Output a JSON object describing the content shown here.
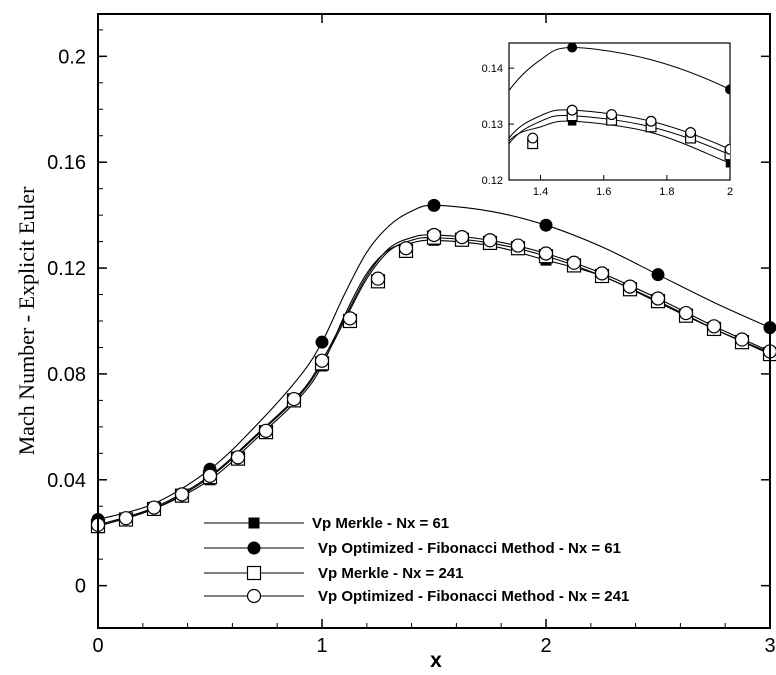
{
  "chart_data": {
    "type": "line",
    "xlabel": "x",
    "ylabel": "Mach Number - Explicit  Euler",
    "xlim": [
      0,
      3
    ],
    "ylim": [
      -0.016,
      0.216
    ],
    "xticks": [
      "0",
      "1",
      "2",
      "3"
    ],
    "yticks": [
      "0",
      "0.04",
      "0.08",
      "0.12",
      "0.16",
      "0.2"
    ],
    "legend_position": "bottom",
    "series": [
      {
        "name": "Vp Merkle - Nx = 61",
        "marker": "filled-square",
        "line": [
          [
            0,
            0.0225
          ],
          [
            0.25,
            0.029
          ],
          [
            0.5,
            0.04
          ],
          [
            0.7,
            0.055
          ],
          [
            0.9,
            0.071
          ],
          [
            1.0,
            0.083
          ],
          [
            1.1,
            0.102
          ],
          [
            1.2,
            0.118
          ],
          [
            1.3,
            0.127
          ],
          [
            1.4,
            0.1295
          ],
          [
            1.5,
            0.1305
          ],
          [
            1.75,
            0.1285
          ],
          [
            2.0,
            0.123
          ],
          [
            2.25,
            0.117
          ],
          [
            2.5,
            0.107
          ],
          [
            2.75,
            0.097
          ],
          [
            3.0,
            0.088
          ]
        ],
        "markers": [
          [
            0,
            0.0225
          ],
          [
            0.5,
            0.04
          ],
          [
            1.0,
            0.083
          ],
          [
            1.5,
            0.1305
          ],
          [
            2.0,
            0.123
          ],
          [
            2.5,
            0.107
          ],
          [
            3.0,
            0.088
          ]
        ]
      },
      {
        "name": "Vp Optimized - Fibonacci Method - Nx = 61",
        "marker": "filled-circle",
        "line": [
          [
            0,
            0.025
          ],
          [
            0.25,
            0.031
          ],
          [
            0.5,
            0.044
          ],
          [
            0.7,
            0.06
          ],
          [
            0.9,
            0.079
          ],
          [
            1.0,
            0.092
          ],
          [
            1.1,
            0.11
          ],
          [
            1.2,
            0.126
          ],
          [
            1.3,
            0.136
          ],
          [
            1.4,
            0.1415
          ],
          [
            1.5,
            0.1437
          ],
          [
            1.75,
            0.1415
          ],
          [
            2.0,
            0.1362
          ],
          [
            2.25,
            0.128
          ],
          [
            2.5,
            0.1175
          ],
          [
            2.75,
            0.107
          ],
          [
            3.0,
            0.0975
          ]
        ],
        "markers": [
          [
            0,
            0.025
          ],
          [
            0.5,
            0.044
          ],
          [
            1.0,
            0.092
          ],
          [
            1.5,
            0.1437
          ],
          [
            2.0,
            0.1362
          ],
          [
            2.5,
            0.1175
          ],
          [
            3.0,
            0.0975
          ]
        ]
      },
      {
        "name": "Vp Merkle - Nx = 241",
        "marker": "open-square",
        "line": [
          [
            0,
            0.0225
          ],
          [
            0.25,
            0.029
          ],
          [
            0.5,
            0.041
          ],
          [
            0.7,
            0.056
          ],
          [
            0.9,
            0.072
          ],
          [
            1.0,
            0.084
          ],
          [
            1.1,
            0.1
          ],
          [
            1.2,
            0.116
          ],
          [
            1.3,
            0.1265
          ],
          [
            1.4,
            0.1305
          ],
          [
            1.5,
            0.1315
          ],
          [
            1.75,
            0.1295
          ],
          [
            2.0,
            0.1245
          ],
          [
            2.25,
            0.117
          ],
          [
            2.5,
            0.1075
          ],
          [
            2.75,
            0.097
          ],
          [
            3.0,
            0.0875
          ]
        ],
        "markers": [
          [
            0,
            0.0225
          ],
          [
            0.125,
            0.025
          ],
          [
            0.25,
            0.029
          ],
          [
            0.375,
            0.034
          ],
          [
            0.5,
            0.041
          ],
          [
            0.625,
            0.048
          ],
          [
            0.75,
            0.058
          ],
          [
            0.875,
            0.07
          ],
          [
            1.0,
            0.084
          ],
          [
            1.125,
            0.1
          ],
          [
            1.25,
            0.115
          ],
          [
            1.375,
            0.1265
          ],
          [
            1.5,
            0.1315
          ],
          [
            1.625,
            0.1307
          ],
          [
            1.75,
            0.1295
          ],
          [
            1.875,
            0.1275
          ],
          [
            2.0,
            0.1245
          ],
          [
            2.125,
            0.121
          ],
          [
            2.25,
            0.117
          ],
          [
            2.375,
            0.112
          ],
          [
            2.5,
            0.1075
          ],
          [
            2.625,
            0.102
          ],
          [
            2.75,
            0.097
          ],
          [
            2.875,
            0.092
          ],
          [
            3.0,
            0.0875
          ]
        ]
      },
      {
        "name": "Vp Optimized - Fibonacci Method - Nx = 241",
        "marker": "open-circle",
        "line": [
          [
            0,
            0.023
          ],
          [
            0.25,
            0.0295
          ],
          [
            0.5,
            0.0415
          ],
          [
            0.7,
            0.0565
          ],
          [
            0.9,
            0.0725
          ],
          [
            1.0,
            0.085
          ],
          [
            1.1,
            0.101
          ],
          [
            1.2,
            0.117
          ],
          [
            1.3,
            0.1275
          ],
          [
            1.4,
            0.1315
          ],
          [
            1.5,
            0.1325
          ],
          [
            1.75,
            0.1305
          ],
          [
            2.0,
            0.1255
          ],
          [
            2.25,
            0.118
          ],
          [
            2.5,
            0.1085
          ],
          [
            2.75,
            0.098
          ],
          [
            3.0,
            0.0885
          ]
        ],
        "markers": [
          [
            0,
            0.023
          ],
          [
            0.125,
            0.0255
          ],
          [
            0.25,
            0.0295
          ],
          [
            0.375,
            0.0345
          ],
          [
            0.5,
            0.0415
          ],
          [
            0.625,
            0.0485
          ],
          [
            0.75,
            0.0585
          ],
          [
            0.875,
            0.0705
          ],
          [
            1.0,
            0.085
          ],
          [
            1.125,
            0.101
          ],
          [
            1.25,
            0.116
          ],
          [
            1.375,
            0.1275
          ],
          [
            1.5,
            0.1325
          ],
          [
            1.625,
            0.1317
          ],
          [
            1.75,
            0.1305
          ],
          [
            1.875,
            0.1285
          ],
          [
            2.0,
            0.1255
          ],
          [
            2.125,
            0.122
          ],
          [
            2.25,
            0.118
          ],
          [
            2.375,
            0.113
          ],
          [
            2.5,
            0.1085
          ],
          [
            2.625,
            0.103
          ],
          [
            2.75,
            0.098
          ],
          [
            2.875,
            0.093
          ],
          [
            3.0,
            0.0885
          ]
        ]
      }
    ],
    "inset": {
      "xlim": [
        1.3,
        2.0
      ],
      "ylim": [
        0.12,
        0.1445
      ],
      "xticks": [
        "1.4",
        "1.6",
        "1.8",
        "2"
      ],
      "yticks": [
        "0.12",
        "0.13",
        "0.14"
      ]
    }
  }
}
